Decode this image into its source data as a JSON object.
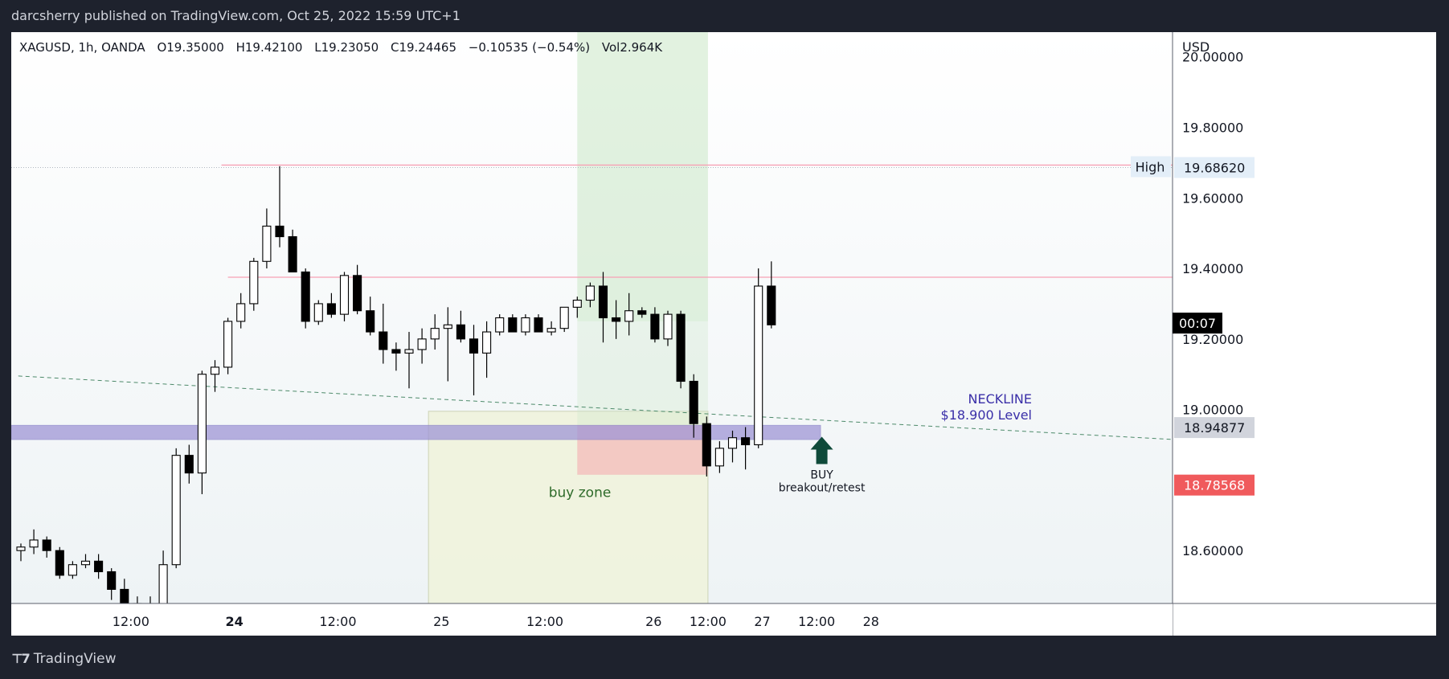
{
  "header": {
    "published": "darcsherry published on TradingView.com, Oct 25, 2022 15:59 UTC+1"
  },
  "footer": {
    "brand": "TradingView",
    "logo_icon": "tradingview-logo-icon"
  },
  "legend": {
    "symbol": "XAGUSD, 1h, OANDA",
    "open": "O19.35000",
    "high": "H19.42100",
    "low": "L19.23050",
    "close": "C19.24465",
    "change": "−0.10535 (−0.54%)",
    "volume": "Vol2.964K"
  },
  "colors": {
    "up_body": "#ffffff",
    "down_body": "#000000",
    "wick": "#000000",
    "high_line": "#f7a1b5",
    "neckline_band": "#9f96d6",
    "neckline_text": "#3a2fa8",
    "buy_zone_fill": "#f0f3dd",
    "target_fill": "#cfe9cc",
    "stop_fill": "#f6c2bf",
    "arrow": "#0f4a3a",
    "buy_zone_text": "#2e6b2a",
    "price_red": "#f05a5c",
    "price_grey": "#d1d4dc",
    "price_black": "#000000"
  },
  "chart_data": {
    "type": "candlestick",
    "symbol": "XAGUSD",
    "timeframe": "1h",
    "currency_label": "USD",
    "ylim": [
      18.45,
      20.07
    ],
    "price_axis_ticks": [
      "20.00000",
      "19.80000",
      "19.60000",
      "19.40000",
      "19.20000",
      "19.00000",
      "18.60000"
    ],
    "price_axis_tick_values": [
      20.0,
      19.8,
      19.6,
      19.4,
      19.2,
      19.0,
      18.6
    ],
    "time_axis_ticks": [
      {
        "label": "12:00",
        "bar": 8.5,
        "bold": false
      },
      {
        "label": "24",
        "bar": 16.5,
        "bold": true
      },
      {
        "label": "12:00",
        "bar": 24.5,
        "bold": false
      },
      {
        "label": "25",
        "bar": 32.5,
        "bold": false
      },
      {
        "label": "12:00",
        "bar": 40.5,
        "bold": false
      },
      {
        "label": "26",
        "bar": 48.9,
        "bold": false
      },
      {
        "label": "12:00",
        "bar": 53.1,
        "bold": false
      },
      {
        "label": "27",
        "bar": 57.3,
        "bold": false
      },
      {
        "label": "12:00",
        "bar": 61.5,
        "bold": false
      },
      {
        "label": "28",
        "bar": 65.7,
        "bold": false
      }
    ],
    "candles": [
      [
        18.6,
        18.62,
        18.57,
        18.61
      ],
      [
        18.61,
        18.66,
        18.59,
        18.63
      ],
      [
        18.63,
        18.64,
        18.58,
        18.6
      ],
      [
        18.6,
        18.61,
        18.52,
        18.53
      ],
      [
        18.53,
        18.57,
        18.52,
        18.56
      ],
      [
        18.56,
        18.59,
        18.55,
        18.57
      ],
      [
        18.57,
        18.59,
        18.52,
        18.54
      ],
      [
        18.54,
        18.55,
        18.46,
        18.49
      ],
      [
        18.49,
        18.52,
        18.43,
        18.45
      ],
      [
        18.45,
        18.47,
        18.43,
        18.44
      ],
      [
        18.44,
        18.47,
        18.41,
        18.42
      ],
      [
        18.42,
        18.6,
        18.41,
        18.56
      ],
      [
        18.56,
        18.89,
        18.55,
        18.87
      ],
      [
        18.87,
        18.9,
        18.79,
        18.82
      ],
      [
        18.82,
        19.11,
        18.76,
        19.1
      ],
      [
        19.1,
        19.14,
        19.05,
        19.12
      ],
      [
        19.12,
        19.26,
        19.1,
        19.25
      ],
      [
        19.25,
        19.33,
        19.23,
        19.3
      ],
      [
        19.3,
        19.43,
        19.28,
        19.42
      ],
      [
        19.42,
        19.57,
        19.4,
        19.52
      ],
      [
        19.52,
        19.69,
        19.46,
        19.49
      ],
      [
        19.49,
        19.51,
        19.39,
        19.39
      ],
      [
        19.39,
        19.4,
        19.23,
        19.25
      ],
      [
        19.25,
        19.31,
        19.24,
        19.3
      ],
      [
        19.3,
        19.33,
        19.26,
        19.27
      ],
      [
        19.27,
        19.39,
        19.25,
        19.38
      ],
      [
        19.38,
        19.41,
        19.27,
        19.28
      ],
      [
        19.28,
        19.32,
        19.21,
        19.22
      ],
      [
        19.22,
        19.3,
        19.13,
        19.17
      ],
      [
        19.17,
        19.19,
        19.11,
        19.16
      ],
      [
        19.16,
        19.22,
        19.06,
        19.17
      ],
      [
        19.17,
        19.23,
        19.13,
        19.2
      ],
      [
        19.2,
        19.27,
        19.17,
        19.23
      ],
      [
        19.23,
        19.29,
        19.08,
        19.24
      ],
      [
        19.24,
        19.28,
        19.19,
        19.2
      ],
      [
        19.2,
        19.24,
        19.04,
        19.16
      ],
      [
        19.16,
        19.25,
        19.09,
        19.22
      ],
      [
        19.22,
        19.27,
        19.21,
        19.26
      ],
      [
        19.26,
        19.27,
        19.22,
        19.22
      ],
      [
        19.22,
        19.27,
        19.21,
        19.26
      ],
      [
        19.26,
        19.27,
        19.22,
        19.22
      ],
      [
        19.22,
        19.25,
        19.21,
        19.23
      ],
      [
        19.23,
        19.29,
        19.22,
        19.29
      ],
      [
        19.29,
        19.32,
        19.26,
        19.31
      ],
      [
        19.31,
        19.36,
        19.29,
        19.35
      ],
      [
        19.35,
        19.39,
        19.19,
        19.26
      ],
      [
        19.26,
        19.31,
        19.2,
        19.25
      ],
      [
        19.25,
        19.33,
        19.21,
        19.28
      ],
      [
        19.28,
        19.29,
        19.26,
        19.27
      ],
      [
        19.27,
        19.29,
        19.19,
        19.2
      ],
      [
        19.2,
        19.28,
        19.18,
        19.27
      ],
      [
        19.27,
        19.28,
        19.06,
        19.08
      ],
      [
        19.08,
        19.1,
        18.92,
        18.96
      ],
      [
        18.96,
        18.98,
        18.81,
        18.84
      ],
      [
        18.84,
        18.91,
        18.82,
        18.89
      ],
      [
        18.89,
        18.94,
        18.85,
        18.92
      ],
      [
        18.92,
        18.95,
        18.83,
        18.9
      ],
      [
        18.9,
        19.4,
        18.89,
        19.35
      ],
      [
        19.35,
        19.42,
        19.23,
        19.24
      ]
    ],
    "levels": [
      {
        "name": "High",
        "price": 19.6862,
        "label": "19.68620"
      },
      {
        "name": "resistance",
        "price": 19.375
      }
    ],
    "neckline": {
      "title": "NECKLINE",
      "level_text": "$18.900 Level",
      "band": [
        18.915,
        18.955
      ]
    },
    "dashed_trend": {
      "start": [
        -0.2,
        19.095
      ],
      "end": [
        66.2,
        18.915
      ]
    },
    "buy_zone": {
      "label": "buy zone",
      "bar_from": 31.5,
      "bar_to": 53.1,
      "price_top": 18.995,
      "price_bottom": 18.45
    },
    "position": {
      "bar_from": 43.0,
      "bar_to": 53.1,
      "target": 20.07,
      "entry": 19.25,
      "stop": 18.815
    },
    "annotation": {
      "line1": "BUY",
      "line2": "breakout/retest",
      "arrow_icon": "up-arrow-icon",
      "bar": 61.9
    },
    "price_labels": [
      {
        "text": "19.68620",
        "value": 19.6862,
        "style": "light"
      },
      {
        "text": "00:07",
        "value": 19.245,
        "style": "black"
      },
      {
        "text": "18.94877",
        "value": 18.94877,
        "style": "grey"
      },
      {
        "text": "18.78568",
        "value": 18.78568,
        "style": "red"
      }
    ]
  }
}
